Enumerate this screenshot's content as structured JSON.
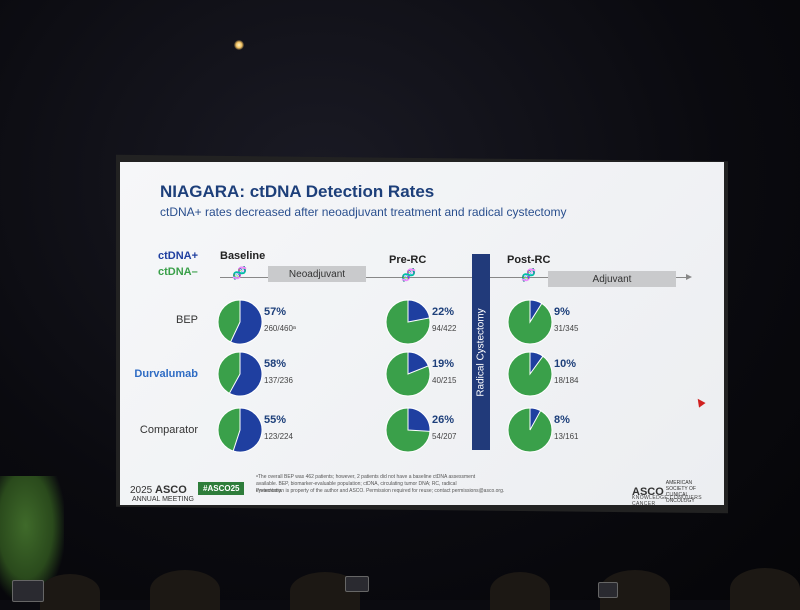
{
  "slide": {
    "title": "NIAGARA: ctDNA Detection Rates",
    "subtitle": "ctDNA+ rates decreased after neoadjuvant treatment and radical cystectomy",
    "legend_positive": "ctDNA+",
    "legend_negative": "ctDNA–",
    "radical_cystectomy": "Radical Cystectomy",
    "phases": {
      "neoadjuvant": "Neoadjuvant",
      "adjuvant": "Adjuvant"
    },
    "footnote_1": "ᵃThe overall BEP was 462 patients; however, 2 patients did not have a baseline ctDNA assessment available. BEP, biomarker-evaluable population; ctDNA, circulating tumor DNA; RC, radical cystectomy.",
    "footnote_2": "Presentation is property of the author and ASCO. Permission required for reuse; contact permissions@asco.org.",
    "meeting_logo": {
      "year": "2025",
      "org": "ASCO",
      "line": "ANNUAL MEETING"
    },
    "hashtag": "#ASCO25",
    "asco_right": {
      "org": "ASCO",
      "small": "AMERICAN SOCIETY OF CLINICAL ONCOLOGY",
      "tagline": "KNOWLEDGE CONQUERS CANCER"
    }
  },
  "colors": {
    "positive": "#1f3fa0",
    "negative": "#3aa04a",
    "bar": "#213a7a"
  },
  "icons": {
    "dna": "dna-helix-icon"
  },
  "chart_data": {
    "type": "pie",
    "title": "NIAGARA: ctDNA Detection Rates",
    "timepoints": [
      "Baseline",
      "Pre-RC",
      "Post-RC"
    ],
    "groups": [
      {
        "name": "BEP",
        "values": [
          {
            "pct": 57,
            "label": "57%",
            "counts": "260/460ᵃ"
          },
          {
            "pct": 22,
            "label": "22%",
            "counts": "94/422"
          },
          {
            "pct": 9,
            "label": "9%",
            "counts": "31/345"
          }
        ]
      },
      {
        "name": "Durvalumab",
        "values": [
          {
            "pct": 58,
            "label": "58%",
            "counts": "137/236"
          },
          {
            "pct": 19,
            "label": "19%",
            "counts": "40/215"
          },
          {
            "pct": 10,
            "label": "10%",
            "counts": "18/184"
          }
        ]
      },
      {
        "name": "Comparator",
        "values": [
          {
            "pct": 55,
            "label": "55%",
            "counts": "123/224"
          },
          {
            "pct": 26,
            "label": "26%",
            "counts": "54/207"
          },
          {
            "pct": 8,
            "label": "8%",
            "counts": "13/161"
          }
        ]
      }
    ]
  }
}
